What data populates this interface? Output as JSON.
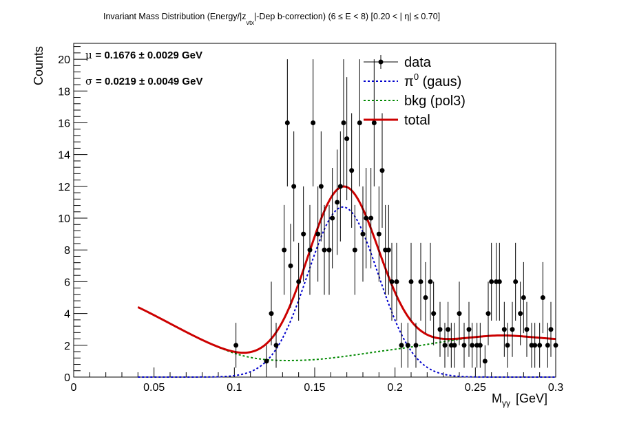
{
  "chart_data": {
    "type": "scatter",
    "title": "Invariant Mass Distribution (Energy/|z_vtx|-Dep b-correction)   (6 ≤ E < 8)   [0.20 < |η| ≤ 0.70]",
    "title_parts": {
      "main": "Invariant Mass Distribution (Energy/|z",
      "sub": "vtx",
      "rest": "|-Dep b-correction)   (6   ≤ E < 8)   [0.20 < |  η| ≤ 0.70]"
    },
    "xlabel": "M",
    "xlabel_sub": "γγ",
    "xlabel_unit": "[GeV]",
    "ylabel": "Counts",
    "xlim": [
      0,
      0.3
    ],
    "ylim": [
      0,
      21
    ],
    "x_ticks": [
      "0",
      "0.05",
      "0.1",
      "0.15",
      "0.2",
      "0.25",
      "0.3"
    ],
    "y_ticks": [
      "0",
      "2",
      "4",
      "6",
      "8",
      "10",
      "12",
      "14",
      "16",
      "18",
      "20"
    ],
    "stats": [
      {
        "symbol": "μ",
        "text": "= 0.1676  ± 0.0029 GeV"
      },
      {
        "symbol": "σ",
        "text": "= 0.0219  ± 0.0049 GeV"
      }
    ],
    "legend": [
      {
        "label": "data",
        "style": "marker"
      },
      {
        "label": "π",
        "sup": "0",
        "label_rest": " (gaus)",
        "style": "dotted-blue"
      },
      {
        "label": "bkg (pol3)",
        "style": "dotted-green"
      },
      {
        "label": "total",
        "style": "solid-red"
      }
    ],
    "colors": {
      "data": "#000000",
      "gaus": "#0000cc",
      "bkg": "#008800",
      "total": "#cc0000"
    },
    "fit": {
      "range": [
        0.04,
        0.3
      ],
      "gaus": {
        "amplitude": 10.7,
        "mean": 0.1676,
        "sigma": 0.0219
      },
      "bkg_points": [
        [
          0.04,
          4.4
        ],
        [
          0.1,
          1.5
        ],
        [
          0.14,
          1.05
        ],
        [
          0.2,
          1.75
        ],
        [
          0.26,
          2.6
        ],
        [
          0.3,
          2.4
        ]
      ]
    },
    "series": [
      {
        "name": "data",
        "x": [
          0.101,
          0.12,
          0.123,
          0.126,
          0.131,
          0.133,
          0.135,
          0.137,
          0.14,
          0.143,
          0.147,
          0.149,
          0.152,
          0.154,
          0.156,
          0.159,
          0.161,
          0.164,
          0.166,
          0.168,
          0.17,
          0.173,
          0.175,
          0.178,
          0.18,
          0.182,
          0.185,
          0.187,
          0.19,
          0.192,
          0.194,
          0.196,
          0.198,
          0.201,
          0.204,
          0.208,
          0.21,
          0.213,
          0.216,
          0.219,
          0.222,
          0.224,
          0.228,
          0.231,
          0.233,
          0.235,
          0.237,
          0.24,
          0.243,
          0.246,
          0.248,
          0.251,
          0.253,
          0.256,
          0.258,
          0.26,
          0.263,
          0.265,
          0.268,
          0.27,
          0.273,
          0.275,
          0.278,
          0.28,
          0.282,
          0.285,
          0.287,
          0.29,
          0.292,
          0.295,
          0.297,
          0.3
        ],
        "y": [
          2,
          1,
          4,
          2,
          8,
          16,
          7,
          12,
          6,
          9,
          8,
          16,
          9,
          12,
          8,
          8,
          10,
          11,
          12,
          16,
          15,
          13,
          8,
          16,
          9,
          10,
          10,
          16,
          9,
          13,
          8,
          8,
          6,
          6,
          2,
          2,
          6,
          2,
          6,
          5,
          6,
          4,
          3,
          2,
          3,
          2,
          2,
          4,
          2,
          3,
          2,
          2,
          2,
          1,
          4,
          6,
          6,
          6,
          3,
          2,
          3,
          6,
          4,
          5,
          3,
          2,
          2,
          2,
          5,
          2,
          3,
          2
        ]
      }
    ]
  }
}
